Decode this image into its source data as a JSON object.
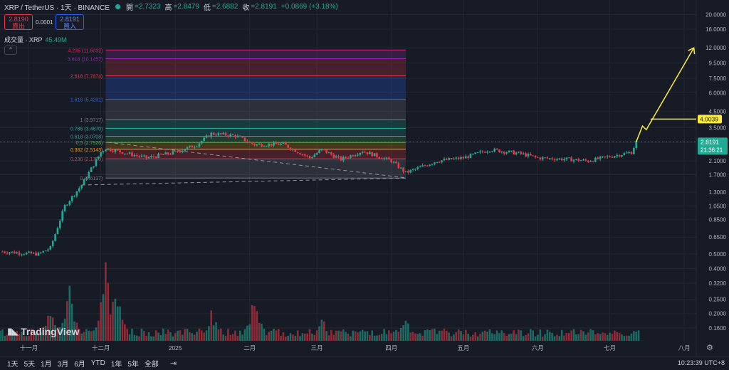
{
  "header": {
    "symbol": "XRP / TetherUS · 1天 · BINANCE",
    "open_label": "開",
    "open": "=2.7323",
    "high_label": "高",
    "high": "=2.8479",
    "low_label": "低",
    "low": "=2.6882",
    "close_label": "收",
    "close": "=2.8191",
    "change": "+0.0869 (+3.18%)"
  },
  "trade": {
    "sell_price": "2.8190",
    "sell_label": "賣出",
    "spread": "0.0001",
    "buy_price": "2.8191",
    "buy_label": "買入"
  },
  "volume_legend": {
    "label": "成交量 · XRP",
    "value": "45.49M"
  },
  "brand": "TradingView",
  "price_tag": {
    "price": "2.8191",
    "countdown": "21:36:21"
  },
  "target_tag": "4.0039",
  "timeframes": [
    "1天",
    "5天",
    "1月",
    "3月",
    "6月",
    "YTD",
    "1年",
    "5年",
    "全部"
  ],
  "clock": "10:23:39 UTC+8",
  "colors": {
    "up": "#22ab94",
    "down": "#f23645",
    "bg": "#171b26",
    "accent": "#ffeb3b"
  },
  "chart_data": [
    {
      "type": "candlestick",
      "scale": "log",
      "ylim": [
        0.13,
        24
      ],
      "y_ticks": [
        "20.0000",
        "16.0000",
        "12.0000",
        "9.5000",
        "7.5000",
        "6.0000",
        "4.5000",
        "3.5000",
        "2.8000",
        "2.1000",
        "1.7000",
        "1.3000",
        "1.0500",
        "0.8500",
        "0.6500",
        "0.5000",
        "0.4000",
        "0.3200",
        "0.2500",
        "0.2000",
        "0.1600"
      ],
      "x_ticks": [
        "十一月",
        "十二月",
        "2025",
        "二月",
        "三月",
        "四月",
        "五月",
        "六月",
        "七月",
        "八月"
      ],
      "x_range": [
        "2024-10-20",
        "2025-08-06"
      ],
      "series": [
        {
          "x": [
            "2024-10-21",
            "2024-11-05",
            "2024-11-10",
            "2024-11-16",
            "2024-11-23",
            "2024-12-01",
            "2024-12-03",
            "2024-12-10",
            "2024-12-20",
            "2025-01-01",
            "2025-01-10",
            "2025-01-16",
            "2025-01-26",
            "2025-02-03",
            "2025-02-15",
            "2025-02-26",
            "2025-03-03",
            "2025-03-11",
            "2025-03-20",
            "2025-04-01",
            "2025-04-07",
            "2025-04-20",
            "2025-05-01",
            "2025-05-12",
            "2025-05-25",
            "2025-06-01",
            "2025-06-15",
            "2025-06-22",
            "2025-07-01",
            "2025-07-10",
            "2025-07-12"
          ],
          "y": [
            0.52,
            0.5,
            0.55,
            1.05,
            1.45,
            2.4,
            2.55,
            2.4,
            2.2,
            2.4,
            2.7,
            3.2,
            3.1,
            2.7,
            2.72,
            2.2,
            2.5,
            2.15,
            2.45,
            2.1,
            1.75,
            2.1,
            2.2,
            2.5,
            2.35,
            2.2,
            2.15,
            2.1,
            2.25,
            2.4,
            2.82
          ]
        }
      ]
    },
    {
      "type": "fibonacci_retracement",
      "levels": [
        {
          "label": "4.236 (11.6032)",
          "value": 11.6032,
          "color": "#e91e63"
        },
        {
          "label": "3.618 (10.1457)",
          "value": 10.1457,
          "color": "#9c27b0"
        },
        {
          "label": "2.618 (7.7874)",
          "value": 7.7874,
          "color": "#f23645"
        },
        {
          "label": "1.618 (5.4291)",
          "value": 5.4291,
          "color": "#2962ff"
        },
        {
          "label": "1 (3.9717)",
          "value": 3.9717,
          "color": "#787b86"
        },
        {
          "label": "0.786 (3.4670)",
          "value": 3.467,
          "color": "#22ab94"
        },
        {
          "label": "0.618 (3.0708)",
          "value": 3.0708,
          "color": "#26a69a"
        },
        {
          "label": "0.5 (2.7926)",
          "value": 2.7926,
          "color": "#4caf50"
        },
        {
          "label": "0.382 (2.5143)",
          "value": 2.5143,
          "color": "#ff9800"
        },
        {
          "label": "0.236 (2.1700)",
          "value": 2.17,
          "color": "#f23645"
        },
        {
          "label": "0 (1.6137)",
          "value": 1.6137,
          "color": "#787b86"
        }
      ]
    },
    {
      "type": "bar",
      "name": "成交量 · XRP",
      "x_range": [
        "2024-10-20",
        "2025-07-13"
      ],
      "peaks": [
        {
          "x": "2024-11-10",
          "value": 0.45
        },
        {
          "x": "2024-11-18",
          "value": 0.62
        },
        {
          "x": "2024-12-03",
          "value": 1.0
        },
        {
          "x": "2024-12-07",
          "value": 0.75
        },
        {
          "x": "2025-01-16",
          "value": 0.4
        },
        {
          "x": "2025-02-03",
          "value": 0.55
        },
        {
          "x": "2025-03-03",
          "value": 0.3
        },
        {
          "x": "2025-04-07",
          "value": 0.28
        }
      ],
      "baseline": 0.12
    }
  ]
}
